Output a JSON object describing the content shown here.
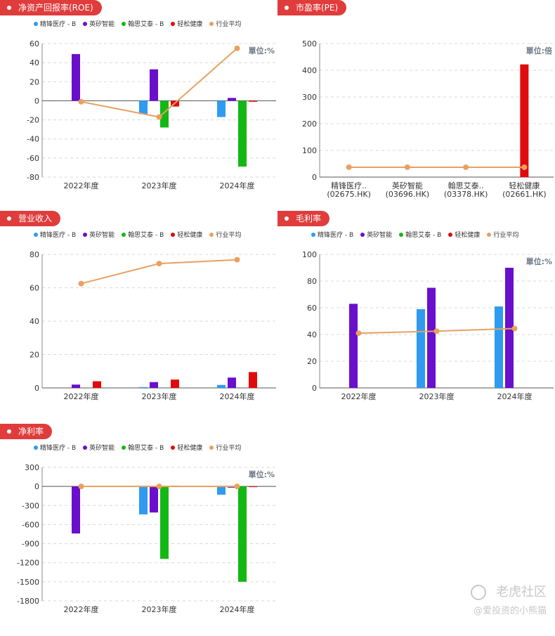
{
  "legend": [
    {
      "name": "精锋医疗 - B",
      "color": "#2e9bf0"
    },
    {
      "name": "英矽智能",
      "color": "#6a0fcc"
    },
    {
      "name": "翰思艾泰 - B",
      "color": "#14b814"
    },
    {
      "name": "轻松健康",
      "color": "#e00b0b"
    },
    {
      "name": "行业平均",
      "color": "#e8a060"
    }
  ],
  "watermark": {
    "brand": "老虎社区",
    "user": "@爱投资的小熊猫"
  },
  "chart_data": [
    {
      "id": "roe",
      "type": "bar",
      "title": "净资产回报率(ROE)",
      "unit": "單位:%",
      "categories": [
        "2022年度",
        "2023年度",
        "2024年度"
      ],
      "ylim": [
        -80,
        60
      ],
      "yticks": [
        "60",
        "40",
        "20",
        "0",
        "-20",
        "-40",
        "-60",
        "-80"
      ],
      "grid": true,
      "series": [
        {
          "name": "精锋医疗 - B",
          "values": [
            null,
            -14,
            -17
          ]
        },
        {
          "name": "英矽智能",
          "values": [
            49,
            33,
            3
          ]
        },
        {
          "name": "翰思艾泰 - B",
          "values": [
            null,
            -28,
            -69
          ]
        },
        {
          "name": "轻松健康",
          "values": [
            null,
            -6,
            -1
          ]
        }
      ],
      "line": {
        "name": "行业平均",
        "values": [
          -1,
          -17,
          55
        ]
      }
    },
    {
      "id": "pe",
      "type": "bar",
      "title": "市盈率(PE)",
      "unit": "單位:倍",
      "categories": [
        "精锋医疗..|(02675.HK)",
        "英矽智能|(03696.HK)",
        "翰思艾泰..|(03378.HK)",
        "轻松健康|(02661.HK)"
      ],
      "ylim": [
        0,
        500
      ],
      "yticks": [
        "500",
        "400",
        "300",
        "200",
        "100",
        "0"
      ],
      "grid": true,
      "values": [
        null,
        null,
        null,
        422
      ],
      "line": {
        "name": "行业平均",
        "values": [
          37,
          37,
          37,
          37
        ]
      }
    },
    {
      "id": "revenue",
      "type": "bar",
      "title": "营业收入",
      "categories": [
        "2022年度",
        "2023年度",
        "2024年度"
      ],
      "ylim": [
        0,
        80
      ],
      "yticks": [
        "80",
        "60",
        "40",
        "20",
        "0"
      ],
      "grid": true,
      "series": [
        {
          "name": "精锋医疗 - B",
          "values": [
            null,
            0.5,
            1.8
          ]
        },
        {
          "name": "英矽智能",
          "values": [
            2,
            3.5,
            6.2
          ]
        },
        {
          "name": "翰思艾泰 - B",
          "values": [
            null,
            null,
            null
          ]
        },
        {
          "name": "轻松健康",
          "values": [
            4,
            5,
            9.5
          ]
        }
      ],
      "line": {
        "name": "行业平均",
        "values": [
          62.5,
          74.5,
          76.8
        ]
      }
    },
    {
      "id": "gross",
      "type": "bar",
      "title": "毛利率",
      "unit": "單位:%",
      "categories": [
        "2022年度",
        "2023年度",
        "2024年度"
      ],
      "ylim": [
        0,
        100
      ],
      "yticks": [
        "100",
        "80",
        "60",
        "40",
        "20",
        "0"
      ],
      "grid": true,
      "series": [
        {
          "name": "精锋医疗 - B",
          "values": [
            null,
            59,
            61
          ]
        },
        {
          "name": "英矽智能",
          "values": [
            63,
            75,
            90
          ]
        },
        {
          "name": "翰思艾泰 - B",
          "values": [
            null,
            null,
            null
          ]
        },
        {
          "name": "轻松健康",
          "values": [
            null,
            null,
            null
          ]
        }
      ],
      "line": {
        "name": "行业平均",
        "values": [
          41,
          42.5,
          44.5
        ]
      }
    },
    {
      "id": "net",
      "type": "bar",
      "title": "净利率",
      "unit": "單位:%",
      "categories": [
        "2022年度",
        "2023年度",
        "2024年度"
      ],
      "ylim": [
        -1800,
        300
      ],
      "yticks": [
        "300",
        "0",
        "-300",
        "-600",
        "-900",
        "-1200",
        "-1500",
        "-1800"
      ],
      "grid": true,
      "series": [
        {
          "name": "精锋医疗 - B",
          "values": [
            null,
            -440,
            -130
          ]
        },
        {
          "name": "英矽智能",
          "values": [
            -740,
            -410,
            -20
          ]
        },
        {
          "name": "翰思艾泰 - B",
          "values": [
            null,
            -1140,
            -1500
          ]
        },
        {
          "name": "轻松健康",
          "values": [
            null,
            10,
            -10
          ]
        }
      ],
      "line": {
        "name": "行业平均",
        "values": [
          0,
          0,
          0
        ]
      }
    }
  ]
}
